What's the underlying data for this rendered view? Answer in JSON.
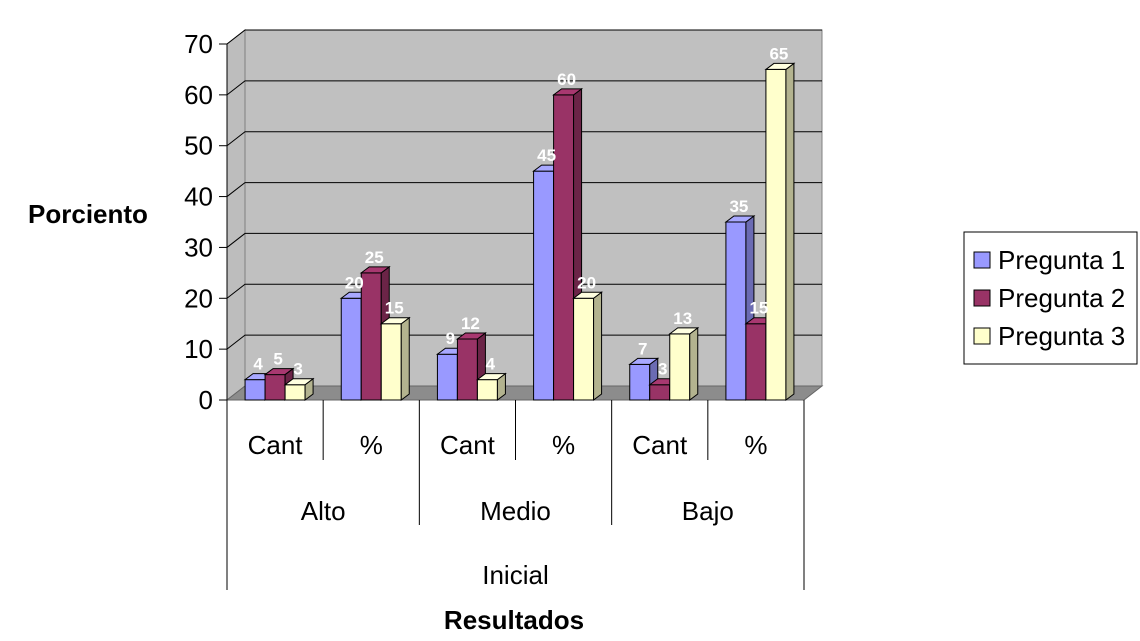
{
  "chart_data": {
    "type": "bar",
    "title": "",
    "xlabel": "Resultados",
    "ylabel": "Porciento",
    "ylim": [
      0,
      70
    ],
    "yticks": [
      0,
      10,
      20,
      30,
      40,
      50,
      60,
      70
    ],
    "grid": true,
    "legend_position": "right",
    "top_group": "Inicial",
    "levels": [
      "Alto",
      "Medio",
      "Bajo"
    ],
    "categories": [
      "Cant",
      "%",
      "Cant",
      "%",
      "Cant",
      "%"
    ],
    "series": [
      {
        "name": "Pregunta 1",
        "color": "#9999ff",
        "values": [
          4,
          20,
          9,
          45,
          7,
          35
        ]
      },
      {
        "name": "Pregunta 2",
        "color": "#993366",
        "values": [
          5,
          25,
          12,
          60,
          3,
          15
        ]
      },
      {
        "name": "Pregunta 3",
        "color": "#ffffcc",
        "values": [
          3,
          15,
          4,
          20,
          13,
          65
        ]
      }
    ]
  }
}
